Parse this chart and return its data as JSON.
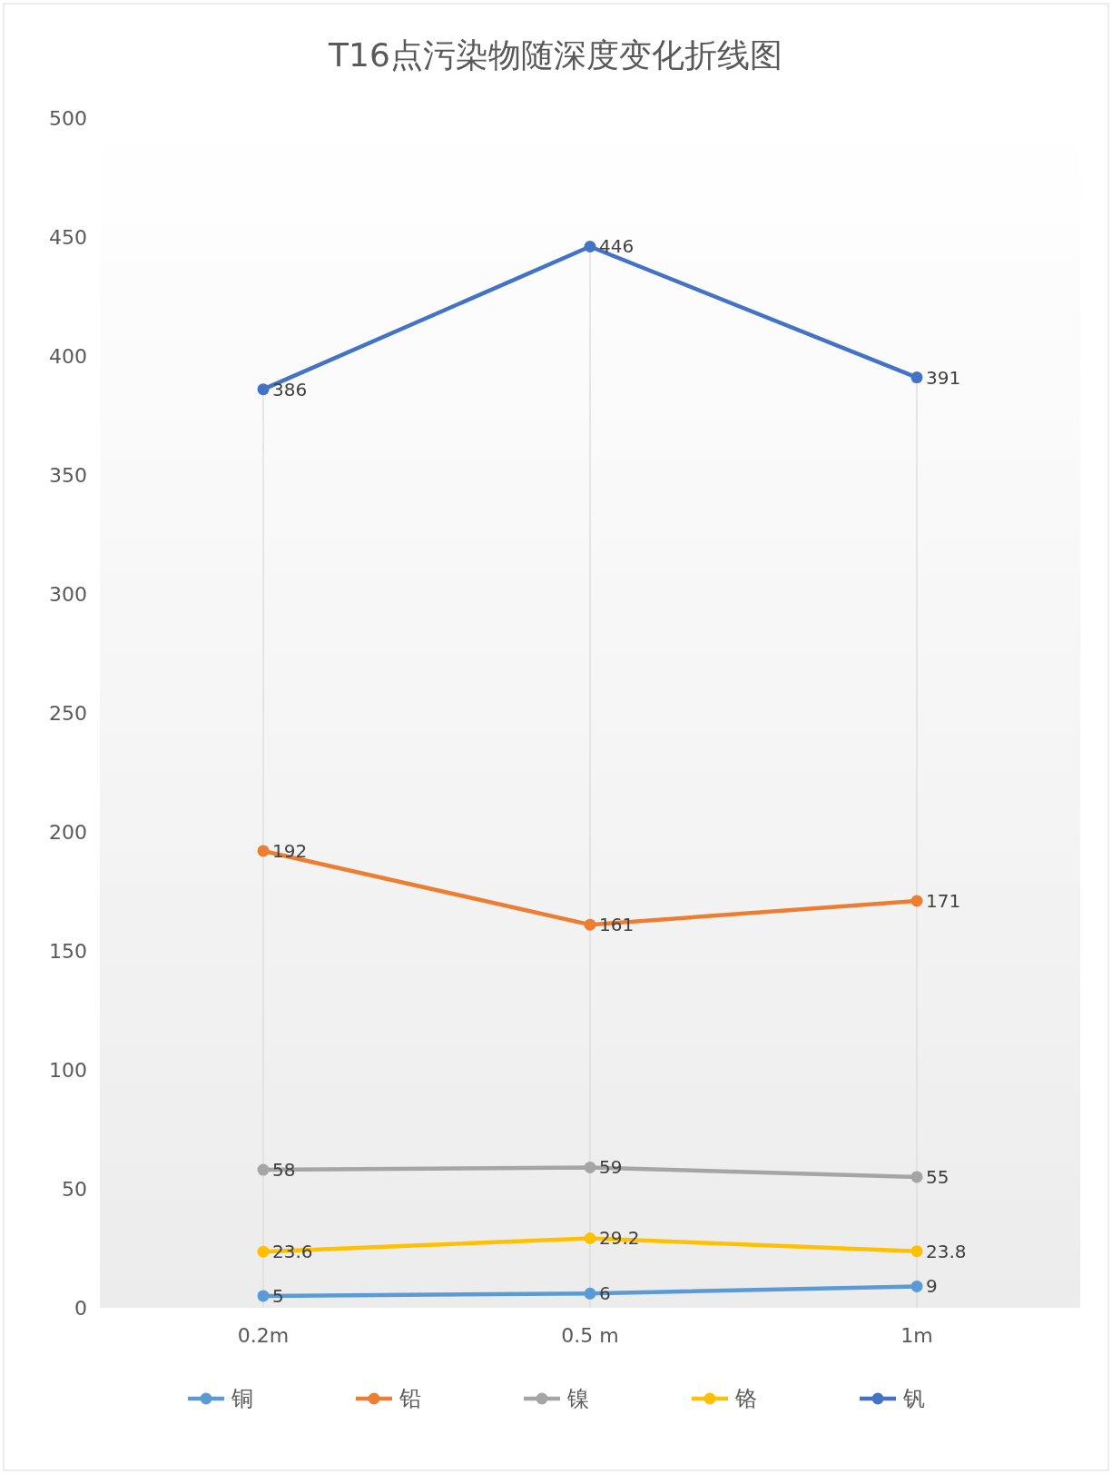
{
  "chart_data": {
    "type": "line",
    "title": "T16点污染物随深度变化折线图",
    "categories": [
      "0.2m",
      "0.5 m",
      "1m"
    ],
    "series": [
      {
        "name": "铜",
        "color": "#5b9bd5",
        "values": [
          5,
          6,
          9
        ]
      },
      {
        "name": "铅",
        "color": "#ed7d31",
        "values": [
          192,
          161,
          171
        ]
      },
      {
        "name": "镍",
        "color": "#a5a5a5",
        "values": [
          58,
          59,
          55
        ]
      },
      {
        "name": "铬",
        "color": "#ffc000",
        "values": [
          23.6,
          29.2,
          23.8
        ]
      },
      {
        "name": "钒",
        "color": "#4472c4",
        "values": [
          386,
          446,
          391
        ]
      }
    ],
    "ylim": [
      0,
      500
    ],
    "yticks": [
      0,
      50,
      100,
      150,
      200,
      250,
      300,
      350,
      400,
      450,
      500
    ],
    "data_labels": true,
    "legend": "bottom",
    "marker": "circle",
    "line_style": "solid",
    "grid": "x"
  }
}
